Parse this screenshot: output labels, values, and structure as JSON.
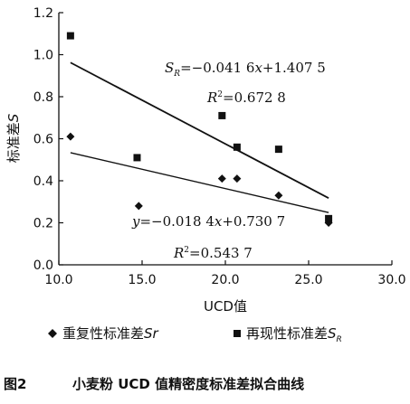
{
  "chart_data": {
    "type": "scatter",
    "xlabel": "UCD值",
    "ylabel": "标准差S",
    "xlim": [
      10.0,
      30.0
    ],
    "ylim": [
      0.0,
      1.2
    ],
    "x_ticks": [
      "10.0",
      "15.0",
      "20.0",
      "25.0",
      "30.0"
    ],
    "y_ticks": [
      "0.0",
      "0.2",
      "0.4",
      "0.6",
      "0.8",
      "1.0",
      "1.2"
    ],
    "grid": false,
    "legend_position": "bottom",
    "series": [
      {
        "name": "重复性标准差Sr",
        "marker": "diamond",
        "points": [
          [
            10.7,
            0.61
          ],
          [
            14.8,
            0.28
          ],
          [
            19.8,
            0.41
          ],
          [
            20.7,
            0.41
          ],
          [
            23.2,
            0.33
          ],
          [
            26.2,
            0.2
          ]
        ],
        "fit": {
          "slope": -0.0184,
          "intercept": 0.7307,
          "x_range": [
            10.7,
            26.2
          ],
          "equation": "y=−0.018 4x+0.730 7",
          "r2_label": "R²=0.543 7"
        }
      },
      {
        "name": "再现性标准差SR",
        "marker": "square",
        "points": [
          [
            10.7,
            1.09
          ],
          [
            14.7,
            0.51
          ],
          [
            19.8,
            0.71
          ],
          [
            20.7,
            0.56
          ],
          [
            23.2,
            0.55
          ],
          [
            26.2,
            0.22
          ]
        ],
        "fit": {
          "slope": -0.0416,
          "intercept": 1.4075,
          "x_range": [
            10.7,
            26.2
          ],
          "equation": "SR=−0.041 6x+1.407 5",
          "r2_label": "R²=0.672 8"
        }
      }
    ],
    "legend": {
      "items": [
        {
          "marker": "diamond",
          "text": "重复性标准差Sr"
        },
        {
          "marker": "square",
          "text": "再现性标准差SR"
        }
      ]
    }
  },
  "caption": {
    "number": "图2",
    "text": "小麦粉 UCD 值精密度标准差拟合曲线"
  },
  "style": {
    "ink": "#111111",
    "background": "#ffffff"
  }
}
